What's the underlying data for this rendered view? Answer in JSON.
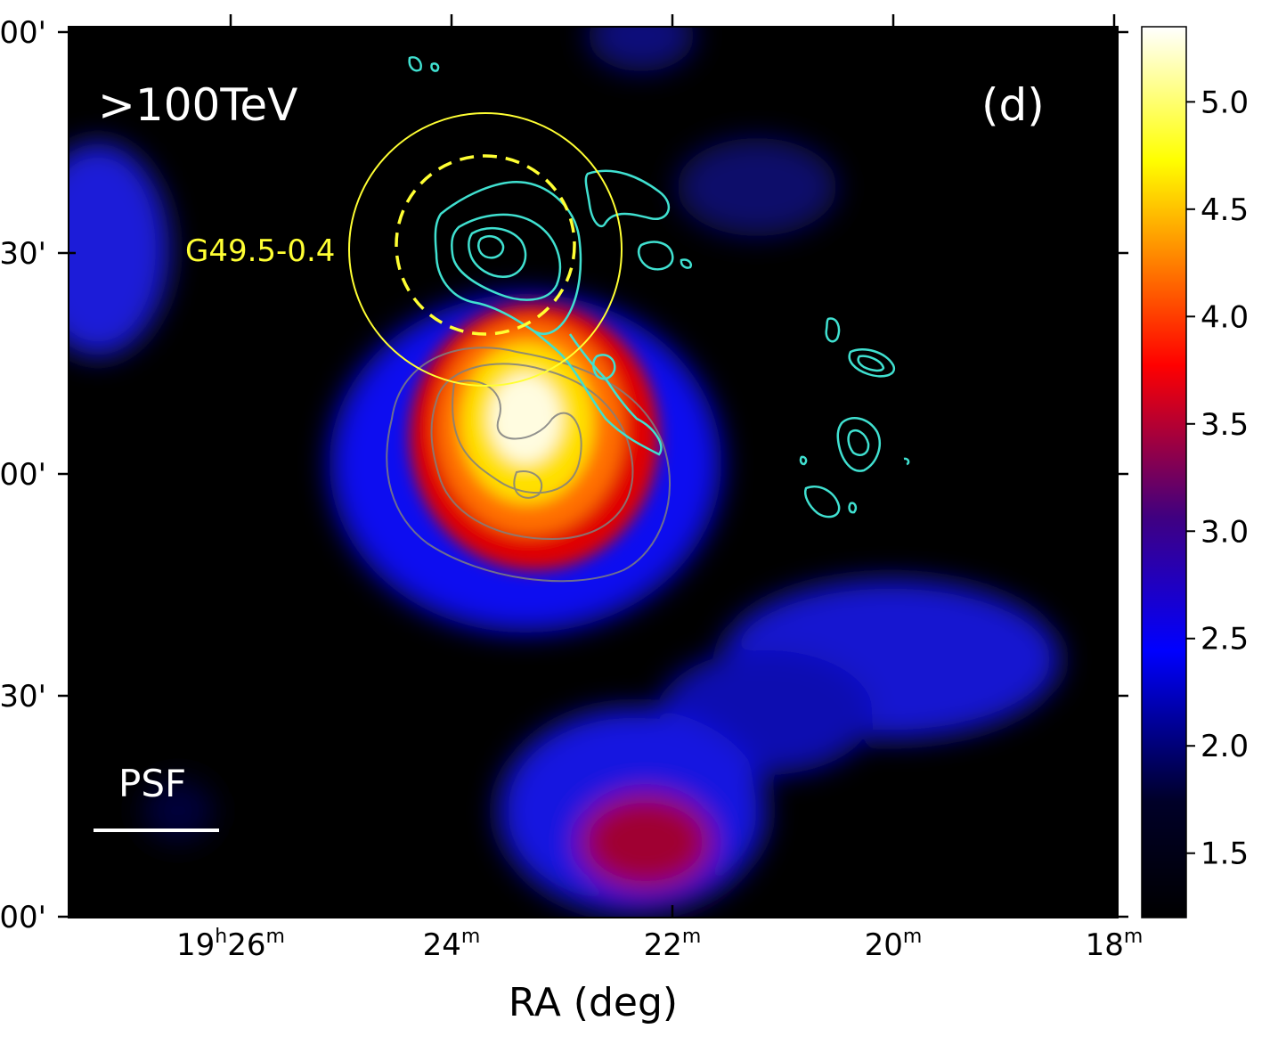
{
  "chart_data": {
    "type": "heatmap",
    "panel_label": "(d)",
    "energy_label": ">100TeV",
    "xlabel": "RA (deg)",
    "ylabel": "",
    "x_ticks": [
      {
        "h": "19",
        "m": "26"
      },
      {
        "h": "",
        "m": "24"
      },
      {
        "h": "",
        "m": "22"
      },
      {
        "h": "",
        "m": "20"
      },
      {
        "h": "",
        "m": "18"
      }
    ],
    "y_ticks": [
      "00'",
      "30'",
      "00'",
      "30'",
      "00'"
    ],
    "colorbar": {
      "ticks": [
        "5.0",
        "4.5",
        "4.0",
        "3.5",
        "3.0",
        "2.5",
        "2.0",
        "1.5"
      ],
      "tick_values": [
        5.0,
        4.5,
        4.0,
        3.5,
        3.0,
        2.5,
        2.0,
        1.5
      ],
      "range": [
        1.2,
        5.35
      ],
      "colormap": [
        "#000000",
        "#0000ff",
        "#ff0000",
        "#ffff00",
        "#ffffff"
      ]
    },
    "annotations": {
      "source_name": "G49.5-0.4",
      "source_color": "#ffff33",
      "psf_label": "PSF"
    },
    "contour_color": "#40e0d0",
    "gray_contour_color": "#808080"
  }
}
